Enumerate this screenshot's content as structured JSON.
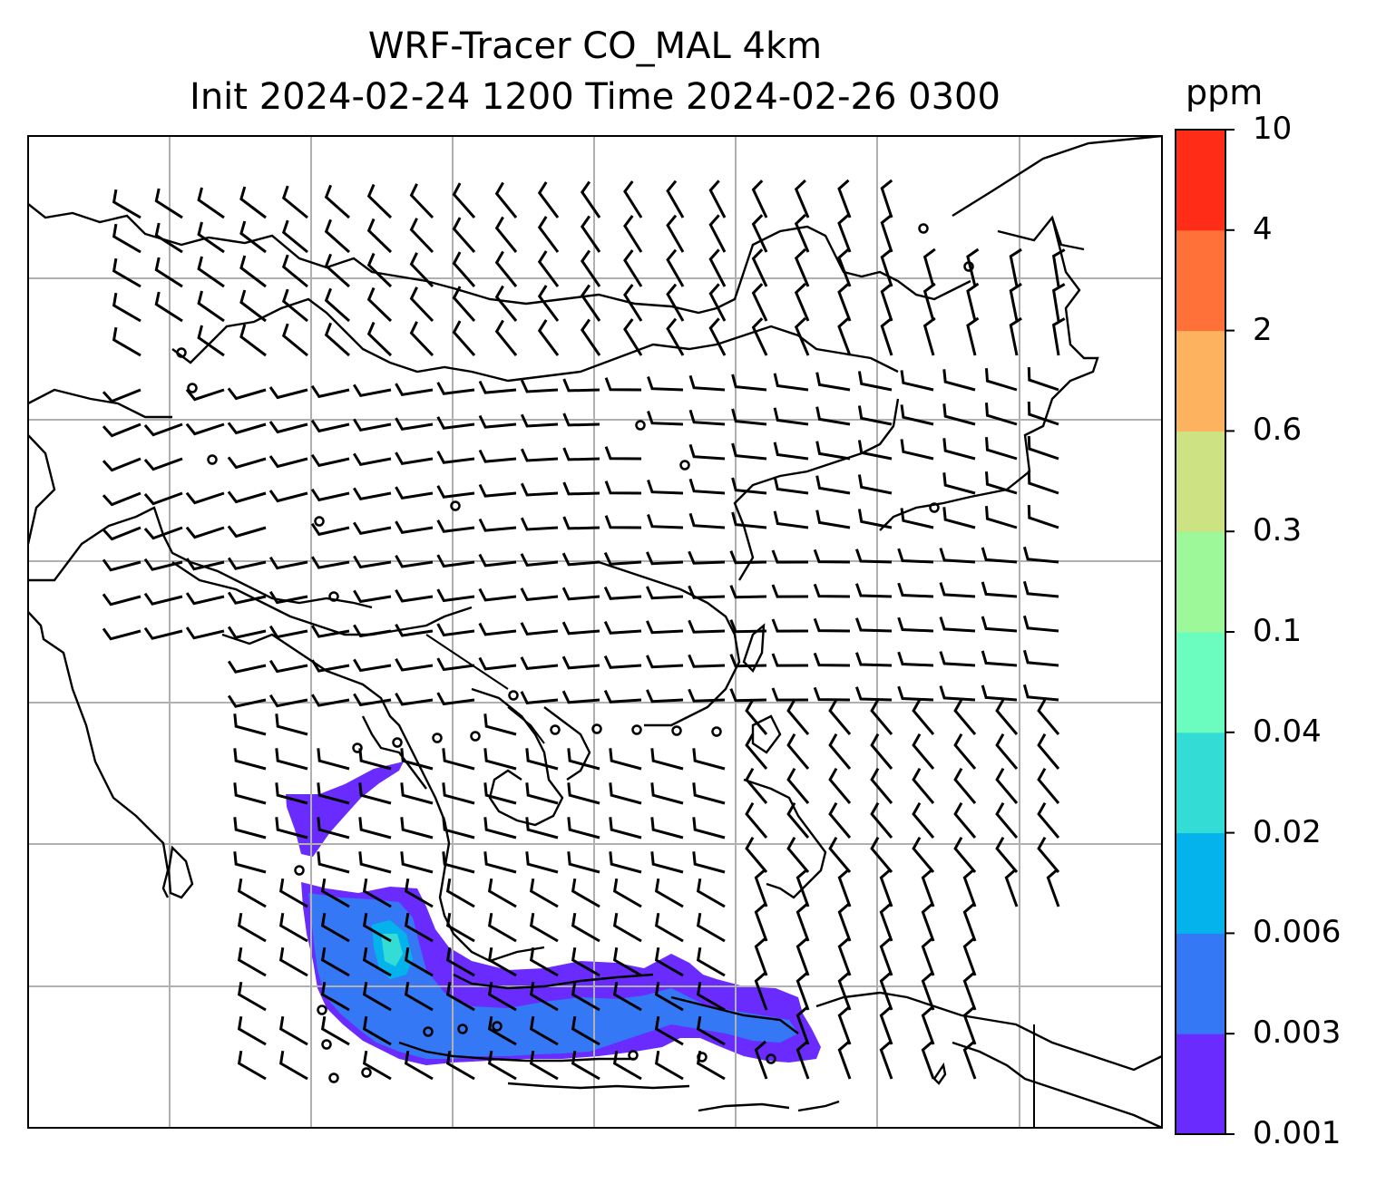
{
  "title": {
    "line1": "WRF-Tracer CO_MAL 4km",
    "line2": "Init 2024-02-24 1200 Time 2024-02-26 0300"
  },
  "colorbar": {
    "unit": "ppm",
    "levels": [
      "0.001",
      "0.003",
      "0.006",
      "0.02",
      "0.04",
      "0.1",
      "0.3",
      "0.6",
      "2",
      "4",
      "10"
    ],
    "colors": [
      "#6a2bff",
      "#3478f5",
      "#04b3ec",
      "#33dcd4",
      "#6bfcbf",
      "#9df89a",
      "#cde283",
      "#fdb25f",
      "#ff7138",
      "#ff2d17"
    ]
  },
  "map": {
    "gridlines": true,
    "features": [
      "coastlines",
      "country-borders",
      "wind-barbs",
      "tracer-shading"
    ]
  }
}
